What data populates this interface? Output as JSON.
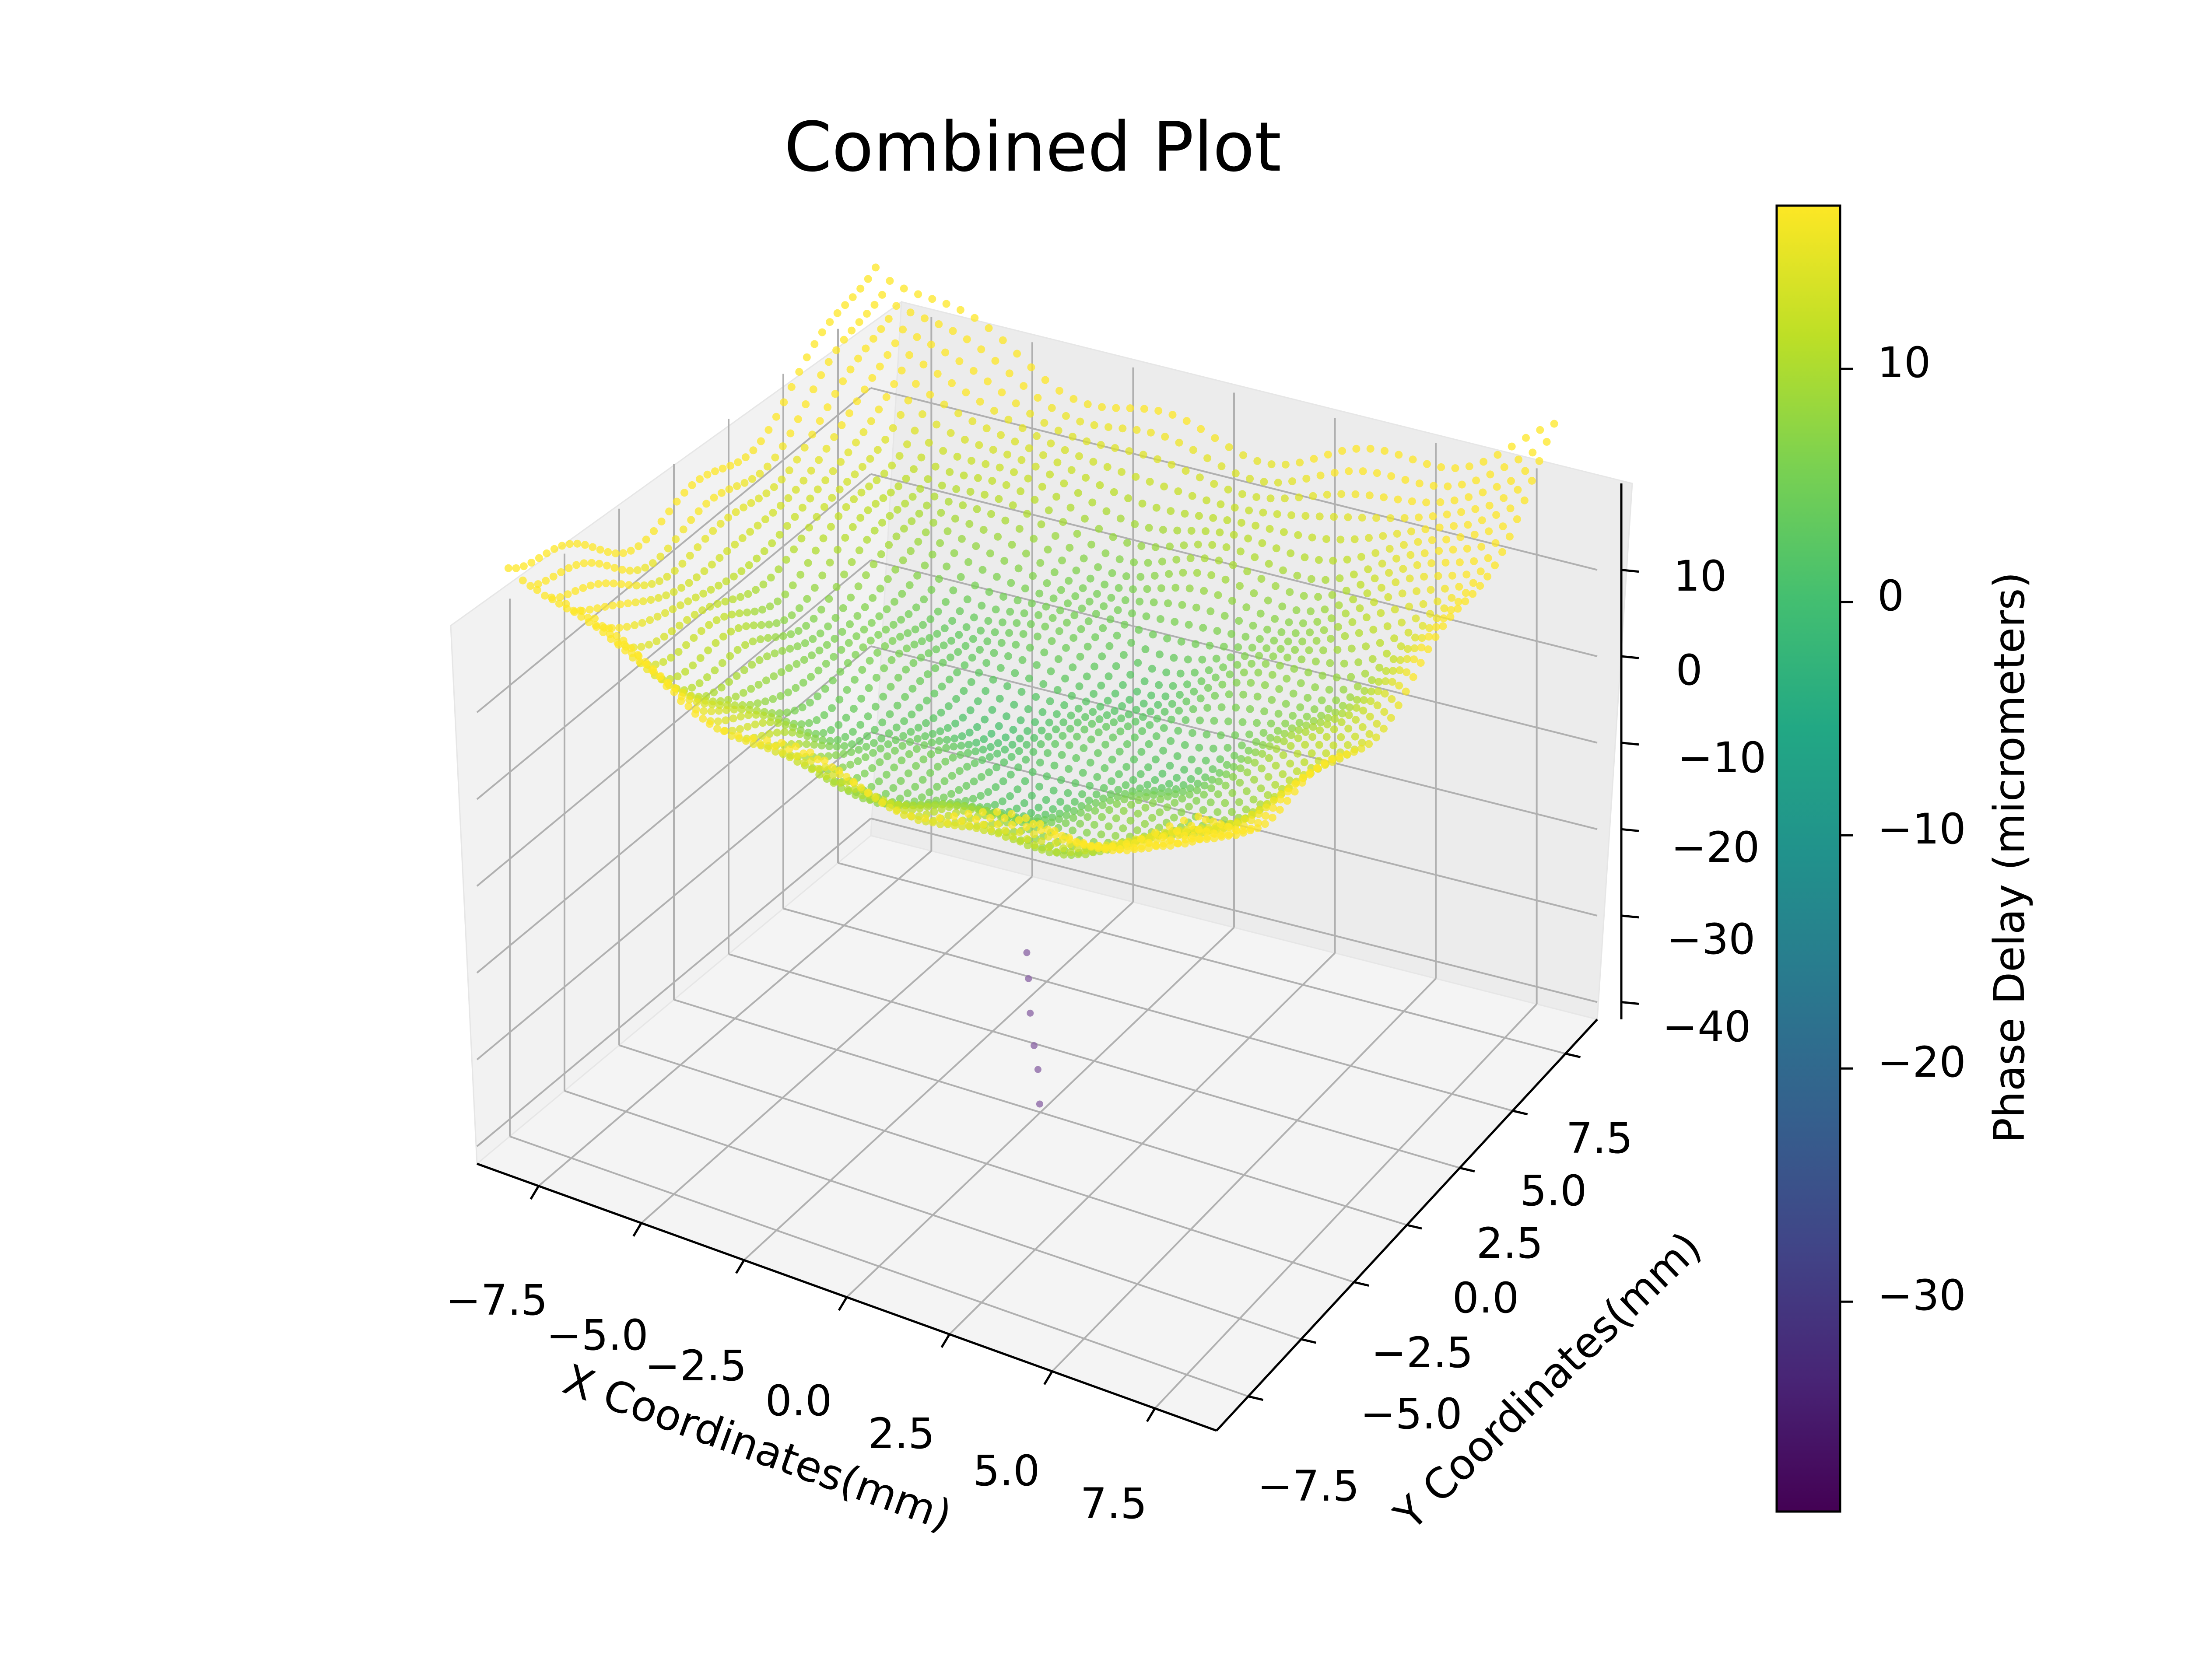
{
  "chart_data": {
    "type": "scatter",
    "projection": "3d",
    "title": "Combined Plot",
    "xlabel": "X Coordinates(mm)",
    "ylabel": "Y Coordinates(mm)",
    "zlabel": "",
    "xlim": [
      -9,
      9
    ],
    "ylim": [
      -9,
      9
    ],
    "zlim": [
      -42,
      20
    ],
    "x_ticks": [
      "−7.5",
      "−5.0",
      "−2.5",
      "0.0",
      "2.5",
      "5.0",
      "7.5"
    ],
    "y_ticks": [
      "−7.5",
      "−5.0",
      "−2.5",
      "0.0",
      "2.5",
      "5.0",
      "7.5"
    ],
    "z_ticks": [
      "−40",
      "−30",
      "−20",
      "−10",
      "0",
      "10"
    ],
    "grid": true,
    "colormap": "viridis",
    "surface": {
      "description_model": "bowl-shaped point cloud: phase = base + k*r^2 + ripple",
      "extent_radius": 8.5,
      "center_value": 2,
      "edge_value": 13,
      "samples": [
        {
          "x": 0.0,
          "y": 0.0,
          "z": 2
        },
        {
          "x": -7.5,
          "y": 7.5,
          "z": 15
        },
        {
          "x": 7.5,
          "y": -7.5,
          "z": 13
        },
        {
          "x": 7.5,
          "y": 7.5,
          "z": 12
        },
        {
          "x": -7.5,
          "y": -7.5,
          "z": 11
        }
      ]
    },
    "outliers": [
      {
        "x": 0.5,
        "y": -1.5,
        "z": -22
      },
      {
        "x": 0.7,
        "y": -1.8,
        "z": -25
      },
      {
        "x": 0.9,
        "y": -2.0,
        "z": -28
      },
      {
        "x": 1.1,
        "y": -2.2,
        "z": -30
      },
      {
        "x": 0.3,
        "y": -1.2,
        "z": -20
      },
      {
        "x": 1.3,
        "y": -2.5,
        "z": -33
      }
    ],
    "colorbar": {
      "label": "Phase Delay (micrometers)",
      "range": [
        -39,
        17
      ],
      "ticks": [
        "10",
        "0",
        "−10",
        "−20",
        "−30"
      ],
      "tick_values": [
        10,
        0,
        -10,
        -20,
        -30
      ]
    }
  }
}
